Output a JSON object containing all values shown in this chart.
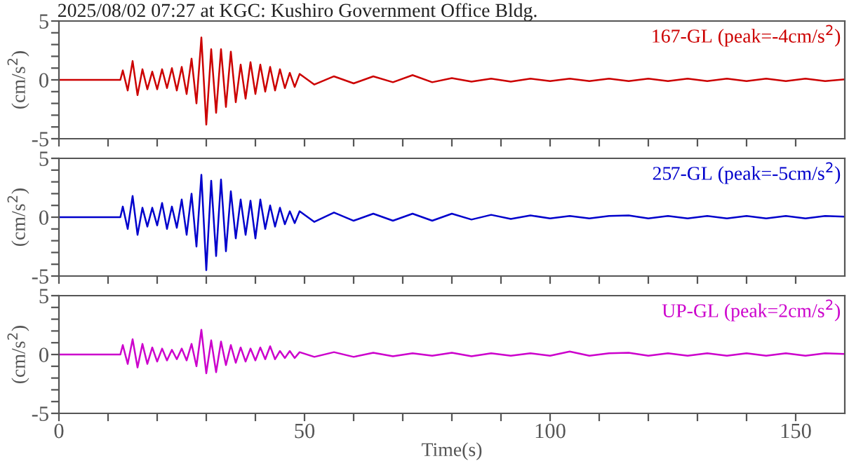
{
  "chart_data": [
    {
      "type": "line",
      "title": "2025/08/02 07:27 at KGC: Kushiro Government Office Bldg.",
      "ylabel": "(cm/s$^{2}$)",
      "legend": "top right",
      "tick_labels": "y",
      "x": [
        0,
        12.5,
        13,
        14,
        15,
        16,
        17,
        18,
        19,
        20,
        21,
        22,
        23,
        24,
        25,
        26,
        27,
        28,
        29,
        30,
        31,
        32,
        33,
        34,
        35,
        36,
        37,
        38,
        39,
        40,
        41,
        42,
        43,
        44,
        45,
        46,
        47,
        48,
        49,
        52,
        56,
        60,
        64,
        68,
        72,
        76,
        80,
        84,
        88,
        92,
        96,
        100,
        104,
        108,
        112,
        116,
        120,
        124,
        128,
        132,
        136,
        140,
        144,
        148,
        152,
        156,
        160
      ],
      "xlim": [
        0,
        160
      ],
      "ylim": [
        -5,
        5
      ],
      "xticks": [
        0,
        {
          "value": 10,
          "label": null
        },
        {
          "value": 20,
          "label": null
        },
        {
          "value": 30,
          "label": null
        },
        {
          "value": 40,
          "label": null
        },
        50,
        {
          "value": 60,
          "label": null
        },
        {
          "value": 70,
          "label": null
        },
        {
          "value": 80,
          "label": null
        },
        {
          "value": 90,
          "label": null
        },
        100,
        {
          "value": 110,
          "label": null
        },
        {
          "value": 120,
          "label": null
        },
        {
          "value": 130,
          "label": null
        },
        {
          "value": 140,
          "label": null
        },
        150
      ],
      "yticks": [
        -5,
        {
          "value": -4,
          "label": null
        },
        {
          "value": -3,
          "label": null
        },
        {
          "value": -2,
          "label": null
        },
        {
          "value": -1,
          "label": null
        },
        0,
        {
          "value": 1,
          "label": null
        },
        {
          "value": 2,
          "label": null
        },
        {
          "value": 3,
          "label": null
        },
        {
          "value": 4,
          "label": null
        },
        5
      ],
      "series": [
        {
          "name": "167-GL (peak=-4cm/s$^{2}$)",
          "color": "#cc0000",
          "values": [
            0,
            0,
            0.8,
            -0.9,
            1.6,
            -1.3,
            0.9,
            -0.8,
            0.7,
            -0.8,
            0.9,
            -0.7,
            1.0,
            -0.9,
            1.1,
            -1.2,
            1.8,
            -2.0,
            3.6,
            -3.8,
            2.6,
            -2.8,
            2.6,
            -2.3,
            2.4,
            -1.9,
            1.3,
            -1.6,
            1.5,
            -1.2,
            1.3,
            -1.0,
            1.1,
            -0.9,
            0.9,
            -0.7,
            0.6,
            -0.6,
            0.5,
            -0.4,
            0.3,
            -0.3,
            0.3,
            -0.2,
            0.4,
            -0.2,
            0.15,
            -0.15,
            0.1,
            -0.15,
            0.1,
            -0.1,
            0.1,
            -0.1,
            0.1,
            -0.1,
            0.1,
            -0.1,
            0.1,
            -0.1,
            0.1,
            -0.1,
            0.1,
            -0.1,
            0.1,
            -0.1,
            0.05
          ]
        }
      ]
    },
    {
      "type": "line",
      "ylabel": "(cm/s$^{2}$)",
      "legend": "top right",
      "tick_labels": "y",
      "x": [
        0,
        12.5,
        13,
        14,
        15,
        16,
        17,
        18,
        19,
        20,
        21,
        22,
        23,
        24,
        25,
        26,
        27,
        28,
        29,
        30,
        31,
        32,
        33,
        34,
        35,
        36,
        37,
        38,
        39,
        40,
        41,
        42,
        43,
        44,
        45,
        46,
        47,
        48,
        49,
        52,
        56,
        60,
        64,
        68,
        72,
        76,
        80,
        84,
        88,
        92,
        96,
        100,
        104,
        108,
        112,
        116,
        120,
        124,
        128,
        132,
        136,
        140,
        144,
        148,
        152,
        156,
        160
      ],
      "xlim": [
        0,
        160
      ],
      "ylim": [
        -5,
        5
      ],
      "xticks": [
        0,
        {
          "value": 10,
          "label": null
        },
        {
          "value": 20,
          "label": null
        },
        {
          "value": 30,
          "label": null
        },
        {
          "value": 40,
          "label": null
        },
        50,
        {
          "value": 60,
          "label": null
        },
        {
          "value": 70,
          "label": null
        },
        {
          "value": 80,
          "label": null
        },
        {
          "value": 90,
          "label": null
        },
        100,
        {
          "value": 110,
          "label": null
        },
        {
          "value": 120,
          "label": null
        },
        {
          "value": 130,
          "label": null
        },
        {
          "value": 140,
          "label": null
        },
        150
      ],
      "yticks": [
        -5,
        {
          "value": -4,
          "label": null
        },
        {
          "value": -3,
          "label": null
        },
        {
          "value": -2,
          "label": null
        },
        {
          "value": -1,
          "label": null
        },
        0,
        {
          "value": 1,
          "label": null
        },
        {
          "value": 2,
          "label": null
        },
        {
          "value": 3,
          "label": null
        },
        {
          "value": 4,
          "label": null
        },
        5
      ],
      "series": [
        {
          "name": "257-GL (peak=-5cm/s$^{2}$)",
          "color": "#0000cc",
          "values": [
            0,
            0,
            0.9,
            -1.0,
            1.8,
            -1.5,
            0.8,
            -0.8,
            0.8,
            -0.7,
            1.2,
            -1.0,
            0.9,
            -0.9,
            1.5,
            -1.5,
            2.0,
            -2.5,
            3.6,
            -4.5,
            3.1,
            -3.3,
            3.2,
            -2.9,
            2.2,
            -1.8,
            1.5,
            -1.5,
            1.4,
            -1.8,
            1.5,
            -1.0,
            1.0,
            -0.8,
            0.8,
            -0.6,
            0.5,
            -0.5,
            0.5,
            -0.4,
            0.4,
            -0.3,
            0.3,
            -0.3,
            0.3,
            -0.3,
            0.3,
            -0.2,
            0.2,
            -0.15,
            0.15,
            -0.1,
            0.1,
            -0.1,
            0.1,
            0.15,
            -0.1,
            0.1,
            -0.1,
            0.1,
            -0.1,
            0.1,
            -0.1,
            0.1,
            -0.1,
            0.1,
            0.05
          ]
        }
      ]
    },
    {
      "type": "line",
      "xlabel": "Time(s)",
      "ylabel": "(cm/s$^{2}$)",
      "legend": "top right",
      "x": [
        0,
        12.5,
        13,
        14,
        15,
        16,
        17,
        18,
        19,
        20,
        21,
        22,
        23,
        24,
        25,
        26,
        27,
        28,
        29,
        30,
        31,
        32,
        33,
        34,
        35,
        36,
        37,
        38,
        39,
        40,
        41,
        42,
        43,
        44,
        45,
        46,
        47,
        48,
        49,
        52,
        56,
        60,
        64,
        68,
        72,
        76,
        80,
        84,
        88,
        92,
        96,
        100,
        104,
        108,
        112,
        116,
        120,
        124,
        128,
        132,
        136,
        140,
        144,
        148,
        152,
        156,
        160
      ],
      "xlim": [
        0,
        160
      ],
      "ylim": [
        -5,
        5
      ],
      "xticks": [
        0,
        {
          "value": 10,
          "label": null
        },
        {
          "value": 20,
          "label": null
        },
        {
          "value": 30,
          "label": null
        },
        {
          "value": 40,
          "label": null
        },
        50,
        {
          "value": 60,
          "label": null
        },
        {
          "value": 70,
          "label": null
        },
        {
          "value": 80,
          "label": null
        },
        {
          "value": 90,
          "label": null
        },
        100,
        {
          "value": 110,
          "label": null
        },
        {
          "value": 120,
          "label": null
        },
        {
          "value": 130,
          "label": null
        },
        {
          "value": 140,
          "label": null
        },
        150
      ],
      "yticks": [
        -5,
        {
          "value": -4,
          "label": null
        },
        {
          "value": -3,
          "label": null
        },
        {
          "value": -2,
          "label": null
        },
        {
          "value": -1,
          "label": null
        },
        0,
        {
          "value": 1,
          "label": null
        },
        {
          "value": 2,
          "label": null
        },
        {
          "value": 3,
          "label": null
        },
        {
          "value": 4,
          "label": null
        },
        5
      ],
      "series": [
        {
          "name": "UP-GL (peak=2cm/s$^{2}$)",
          "color": "#cc00cc",
          "values": [
            0,
            0,
            0.8,
            -0.8,
            1.3,
            -1.1,
            0.9,
            -0.8,
            0.6,
            -0.6,
            0.5,
            -0.5,
            0.4,
            -0.4,
            0.5,
            -0.5,
            0.9,
            -1.0,
            2.1,
            -1.6,
            1.2,
            -1.5,
            1.1,
            -0.9,
            0.8,
            -0.7,
            0.6,
            -0.6,
            0.5,
            -0.5,
            0.6,
            -0.4,
            0.7,
            -0.4,
            0.3,
            -0.3,
            0.3,
            -0.3,
            0.2,
            -0.2,
            0.2,
            -0.2,
            0.15,
            -0.15,
            0.1,
            -0.1,
            0.15,
            -0.15,
            0.1,
            -0.1,
            0.1,
            -0.1,
            0.25,
            -0.1,
            0.1,
            0.15,
            -0.1,
            0.1,
            -0.1,
            0.1,
            -0.1,
            0.1,
            -0.1,
            0.1,
            -0.1,
            0.1,
            0.05
          ]
        }
      ]
    }
  ]
}
